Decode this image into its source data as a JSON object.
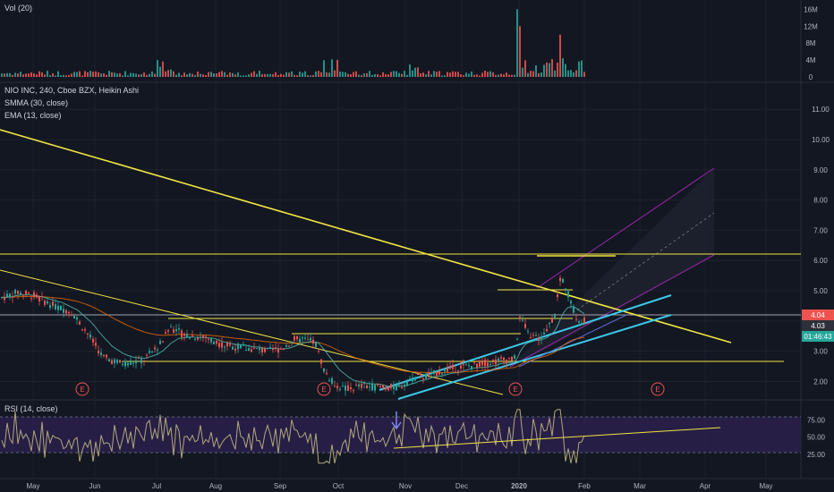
{
  "chart_data": {
    "type": "candlestick",
    "symbol_line": "NIO INC, 240, Cboe BZX, Heikin Ashi",
    "indicators": [
      "SMMA (30, close)",
      "EMA (13, close)"
    ],
    "volume_title": "Vol (20)",
    "rsi_title": "RSI (14, close)",
    "x_ticks": [
      "May",
      "Jun",
      "Jul",
      "Aug",
      "Sep",
      "Oct",
      "Nov",
      "Dec",
      "2020",
      "Feb",
      "Mar",
      "Apr",
      "May"
    ],
    "price_ticks": [
      "11.00",
      "10.00",
      "9.00",
      "8.00",
      "7.00",
      "6.00",
      "5.00",
      "4.00",
      "3.00",
      "2.00"
    ],
    "volume_ticks": [
      "16M",
      "12M",
      "8M",
      "4M",
      "0"
    ],
    "rsi_ticks": [
      "75.00",
      "50.00",
      "25.00"
    ],
    "price_tags": [
      "4.04",
      "4.03",
      "01:46:43"
    ],
    "earnings_marker": "E",
    "price_series_approx": [
      [
        "May",
        4.9
      ],
      [
        "Jun",
        3.3
      ],
      [
        "Jul",
        3.9
      ],
      [
        "Aug",
        3.3
      ],
      [
        "Sep",
        3.4
      ],
      [
        "Oct",
        1.7
      ],
      [
        "Nov",
        2.1
      ],
      [
        "Dec",
        2.6
      ],
      [
        "2020",
        4.3
      ],
      [
        "Feb",
        4.0
      ]
    ],
    "horizontal_levels": [
      5.95,
      4.78,
      3.9,
      3.4,
      2.55
    ],
    "rsi_range": [
      25,
      75
    ],
    "colors": {
      "background": "#131722",
      "up": "#26a69a",
      "down": "#ef5350",
      "trend": "#f0e442",
      "channel": "#3bc7e8",
      "fib_channel": "#9c27b0",
      "rsi": "#b0a97a",
      "rsi_band": "#2a1f4a"
    }
  }
}
